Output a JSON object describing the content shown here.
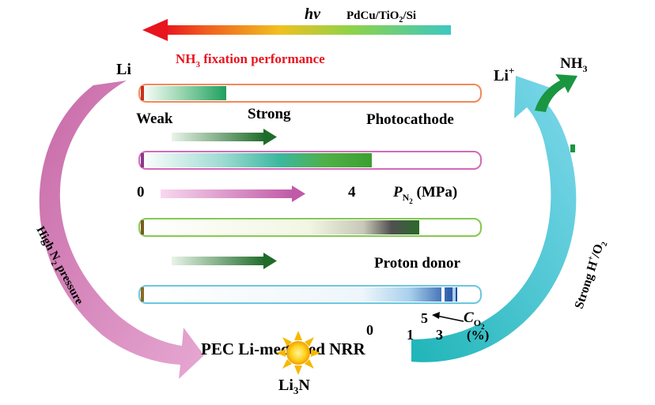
{
  "header": {
    "light_symbol": "hν",
    "catalyst": {
      "a": "PdCu/TiO",
      "sub": "2",
      "b": "/Si"
    },
    "performance": {
      "a": "NH",
      "sub": "3",
      "b": " fixation performance"
    }
  },
  "colors": {
    "pink": "#d67ab8",
    "cyan": "#2fbfcc",
    "red_text": "#e8141e",
    "green": "#1a9641",
    "orange_tube": "#f08a5a",
    "magenta_tube": "#d36ab8",
    "lime_tube": "#86c850",
    "blue_tube": "#6ac7e0"
  },
  "cycle": {
    "li": "Li",
    "li_plus": {
      "a": "Li",
      "sup": "+"
    },
    "nh3": {
      "a": "NH",
      "sub": "3"
    },
    "left_arrow_label": {
      "a": "High N",
      "sub": "2",
      "b": " pressure"
    },
    "right_arrow_label": {
      "a": "Strong H",
      "sup": "+",
      "b": "/O",
      "sub": "2"
    },
    "center": "PEC Li-mediated NRR",
    "product": {
      "a": "Li",
      "sub": "3",
      "b": "N"
    },
    "sun_icon": "sun-icon"
  },
  "bars": {
    "b1": {
      "left": "Weak",
      "middle": "Strong",
      "right": "Photocathode"
    },
    "b2": {
      "start": "0",
      "end": "4",
      "var": "P",
      "var_sub": "N",
      "var_subsub": "2",
      "unit": " (MPa)"
    },
    "b3": {
      "right": "Proton donor"
    },
    "b4": {
      "tick0": "0",
      "tick1": "1",
      "tick3": "3",
      "tick5": "5",
      "var": "C",
      "var_sub": "O",
      "var_subsub": "2",
      "unit": "(%)"
    }
  }
}
